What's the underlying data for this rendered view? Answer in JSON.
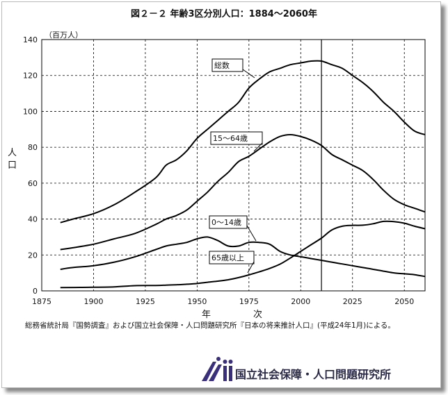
{
  "title": "図２－２ 年齢3区分別人口：1884～2060年",
  "source_note": "総務省統計局『国勢調査』および国立社会保障・人口問題研究所『日本の将来推計人口』(平成24年1月)による。",
  "logo_text": "国立社会保障・人口問題研究所",
  "chart_data": {
    "type": "line",
    "title": "図２－２ 年齢3区分別人口：1884～2060年",
    "xlabel": "年　次",
    "ylabel": "人口",
    "unit": "（百万人）",
    "xlim": [
      1875,
      2060
    ],
    "ylim": [
      0,
      140
    ],
    "xticks": [
      1875,
      1900,
      1925,
      1950,
      1975,
      2000,
      2025,
      2050
    ],
    "yticks": [
      0,
      20,
      40,
      60,
      80,
      100,
      120,
      140
    ],
    "grid": true,
    "vline_x": 2010,
    "series": [
      {
        "name": "総数",
        "x": [
          1884,
          1890,
          1900,
          1910,
          1920,
          1930,
          1935,
          1940,
          1945,
          1950,
          1955,
          1960,
          1965,
          1970,
          1975,
          1980,
          1985,
          1990,
          1995,
          2000,
          2005,
          2010,
          2015,
          2020,
          2025,
          2030,
          2035,
          2040,
          2045,
          2050,
          2055,
          2060
        ],
        "values": [
          38,
          40,
          43,
          48,
          55,
          63,
          70,
          73,
          78,
          85,
          90,
          95,
          100,
          105,
          113,
          118,
          122,
          124,
          126,
          127,
          128,
          128,
          126,
          124,
          120,
          116,
          111,
          105,
          100,
          94,
          89,
          87
        ]
      },
      {
        "name": "15～64歳",
        "x": [
          1884,
          1890,
          1900,
          1910,
          1920,
          1930,
          1935,
          1940,
          1945,
          1950,
          1955,
          1960,
          1965,
          1970,
          1975,
          1980,
          1985,
          1990,
          1995,
          2000,
          2005,
          2010,
          2015,
          2020,
          2025,
          2030,
          2035,
          2040,
          2045,
          2050,
          2055,
          2060
        ],
        "values": [
          23,
          24,
          26,
          29,
          32,
          37,
          40,
          42,
          45,
          50,
          55,
          61,
          66,
          72,
          75,
          79,
          83,
          86,
          87,
          86,
          84,
          81,
          76,
          73,
          70,
          67,
          62,
          56,
          51,
          48,
          46,
          44
        ]
      },
      {
        "name": "0～14歳",
        "x": [
          1884,
          1890,
          1900,
          1910,
          1920,
          1930,
          1935,
          1940,
          1945,
          1950,
          1955,
          1960,
          1965,
          1970,
          1975,
          1980,
          1985,
          1990,
          1995,
          2000,
          2005,
          2010,
          2015,
          2020,
          2025,
          2030,
          2035,
          2040,
          2045,
          2050,
          2055,
          2060
        ],
        "values": [
          12,
          13,
          14,
          16,
          19,
          23,
          25,
          26,
          27,
          29,
          30,
          28,
          25,
          25,
          27,
          27,
          26,
          22,
          20,
          19,
          18,
          17,
          16,
          15,
          14,
          13,
          12,
          11,
          10,
          9.5,
          9,
          8
        ]
      },
      {
        "name": "65歳以上",
        "x": [
          1884,
          1890,
          1900,
          1910,
          1920,
          1930,
          1935,
          1940,
          1945,
          1950,
          1955,
          1960,
          1965,
          1970,
          1975,
          1980,
          1985,
          1990,
          1995,
          2000,
          2005,
          2010,
          2015,
          2020,
          2025,
          2030,
          2035,
          2040,
          2045,
          2050,
          2055,
          2060
        ],
        "values": [
          1.8,
          1.9,
          2.0,
          2.2,
          2.9,
          3.0,
          3.2,
          3.4,
          3.7,
          4.1,
          4.8,
          5.4,
          6.2,
          7.4,
          8.9,
          10.6,
          12.5,
          14.9,
          18.3,
          22.0,
          25.7,
          29.4,
          33.9,
          36.0,
          36.5,
          36.6,
          37.4,
          38.7,
          38.6,
          37.7,
          36.0,
          34.6
        ]
      }
    ],
    "annotations": [
      {
        "text": "総数",
        "series": "総数"
      },
      {
        "text": "15～64歳",
        "series": "15～64歳"
      },
      {
        "text": "0～14歳",
        "series": "0～14歳"
      },
      {
        "text": "65歳以上",
        "series": "65歳以上"
      }
    ]
  }
}
